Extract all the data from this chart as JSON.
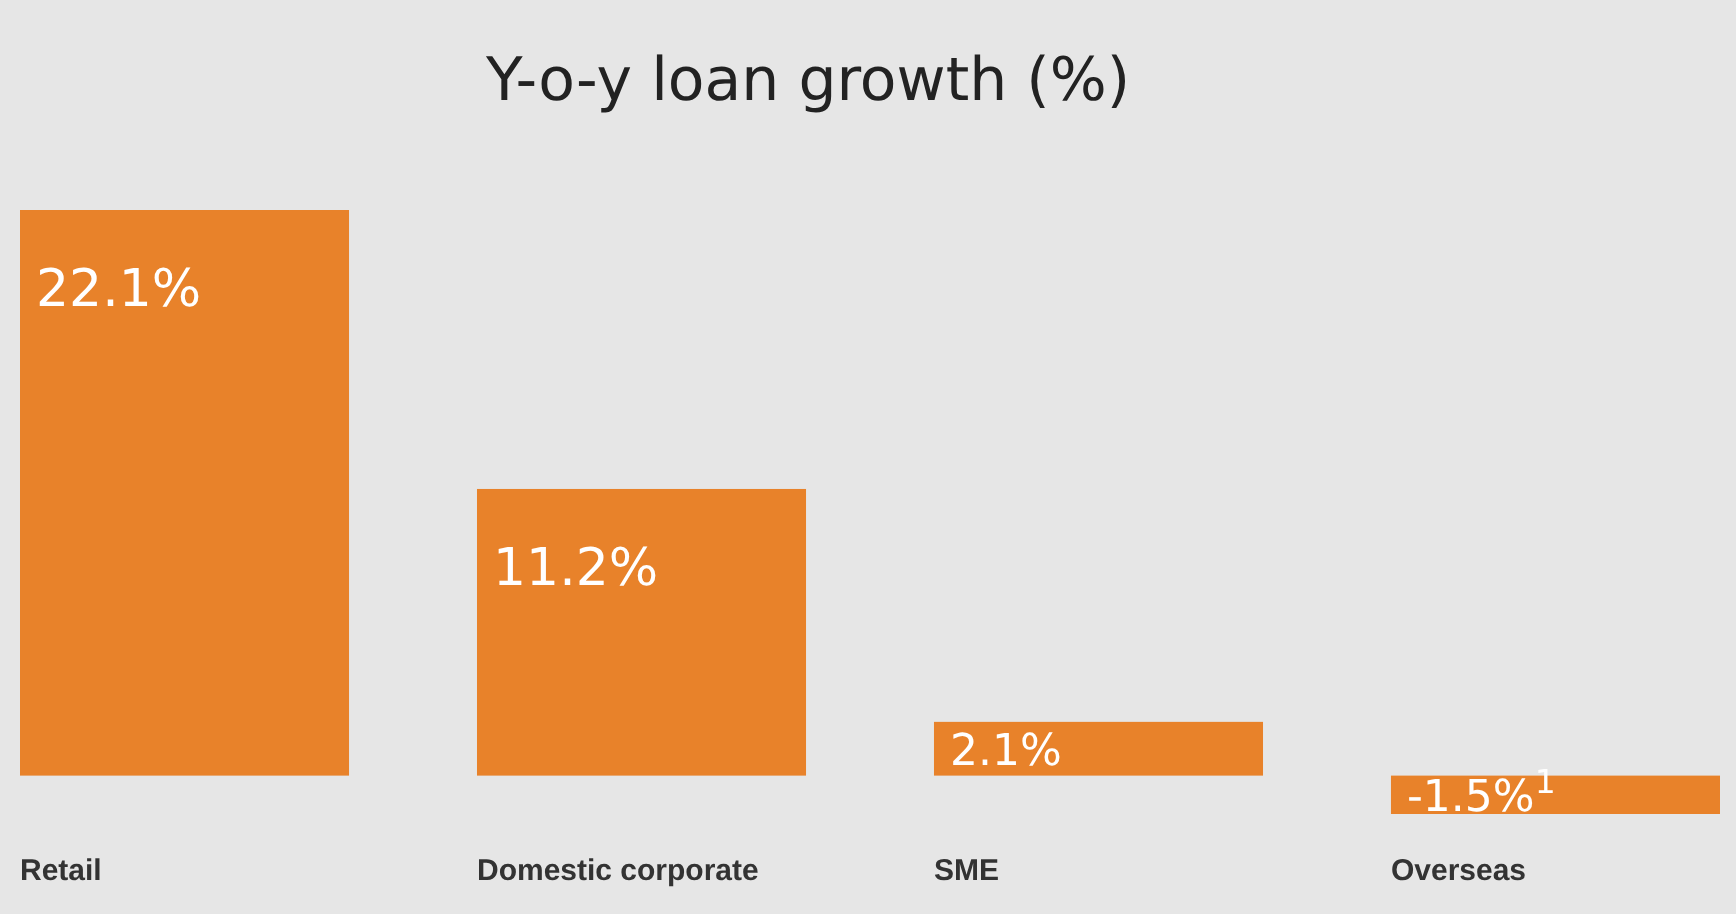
{
  "chart_data": {
    "type": "bar",
    "title": "Y-o-y loan growth (%)",
    "categories": [
      "Retail",
      "Domestic corporate",
      "SME",
      "Overseas"
    ],
    "values": [
      22.1,
      11.2,
      2.1,
      -1.5
    ],
    "value_labels": [
      "22.1%",
      "11.2%",
      "2.1%",
      "-1.5%$^{1}$"
    ],
    "color": "#e8822a"
  }
}
